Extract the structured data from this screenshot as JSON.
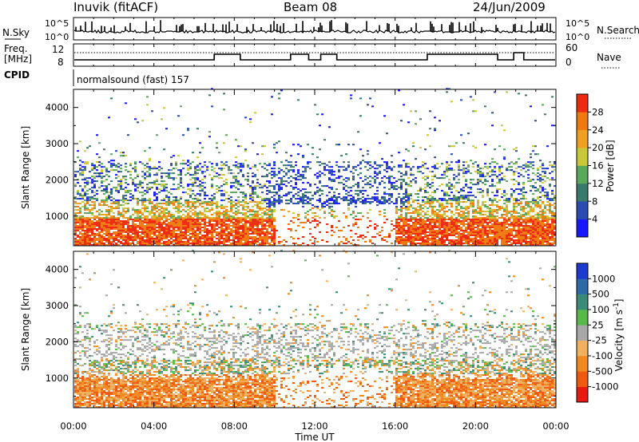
{
  "header": {
    "station": "Inuvik (fitACF)",
    "beam": "Beam 08",
    "date": "24/Jun/2009"
  },
  "strips": {
    "nsky_label": "N.Sky",
    "nsky_ticks": [
      "10^5",
      "10^0"
    ],
    "nsearch_label": "N.Search",
    "nsearch_ticks": [
      "10^5",
      "10^0"
    ],
    "freq_label_line1": "Freq.",
    "freq_label_line2": "[MHz]",
    "freq_ticks": [
      "12",
      "8"
    ],
    "nave_label": "Nave",
    "nave_ticks": [
      "60",
      "0"
    ],
    "cpid_label": "CPID",
    "cpid_value": "normalsound (fast) 157"
  },
  "chart_data": [
    {
      "type": "heatmap",
      "name": "power",
      "xlabel": "",
      "ylabel": "Slant Range [km]",
      "x_ticks": [
        "00:00",
        "04:00",
        "08:00",
        "12:00",
        "16:00",
        "20:00",
        "00:00"
      ],
      "y_ticks": [
        "1000",
        "2000",
        "3000",
        "4000"
      ],
      "xlim": [
        0,
        24
      ],
      "ylim": [
        180,
        4500
      ],
      "colorbar": {
        "label": "Power [dB]",
        "ticks": [
          "4",
          "8",
          "12",
          "16",
          "20",
          "24",
          "28"
        ],
        "colors": [
          "#1818ff",
          "#2a4bb0",
          "#3a7a6a",
          "#5aa85a",
          "#c8c838",
          "#f0a020",
          "#f07a10",
          "#ee2a10"
        ]
      },
      "features": [
        {
          "desc": "strong echoes",
          "x": [
            0,
            24
          ],
          "range_km": [
            300,
            1000
          ],
          "level_db": 28
        },
        {
          "desc": "patchy echoes",
          "x": [
            10,
            17
          ],
          "range_km": [
            1200,
            2500
          ],
          "level_db": 8
        }
      ]
    },
    {
      "type": "heatmap",
      "name": "velocity",
      "xlabel": "Time UT",
      "ylabel": "Slant Range [km]",
      "x_ticks": [
        "00:00",
        "04:00",
        "08:00",
        "12:00",
        "16:00",
        "20:00",
        "00:00"
      ],
      "y_ticks": [
        "1000",
        "2000",
        "3000",
        "4000"
      ],
      "xlim": [
        0,
        24
      ],
      "ylim": [
        180,
        4500
      ],
      "colorbar": {
        "label": "Velocity [m s",
        "label_sup": "-1",
        "label_end": "]",
        "ticks": [
          "1000",
          "500",
          "100",
          "25",
          "-25",
          "-100",
          "-500",
          "-1000"
        ],
        "colors": [
          "#1a3ad0",
          "#2c6aa8",
          "#3c8a78",
          "#58b848",
          "#a8a8a8",
          "#f0b060",
          "#f08a20",
          "#f05a10",
          "#e81a10"
        ]
      }
    }
  ]
}
